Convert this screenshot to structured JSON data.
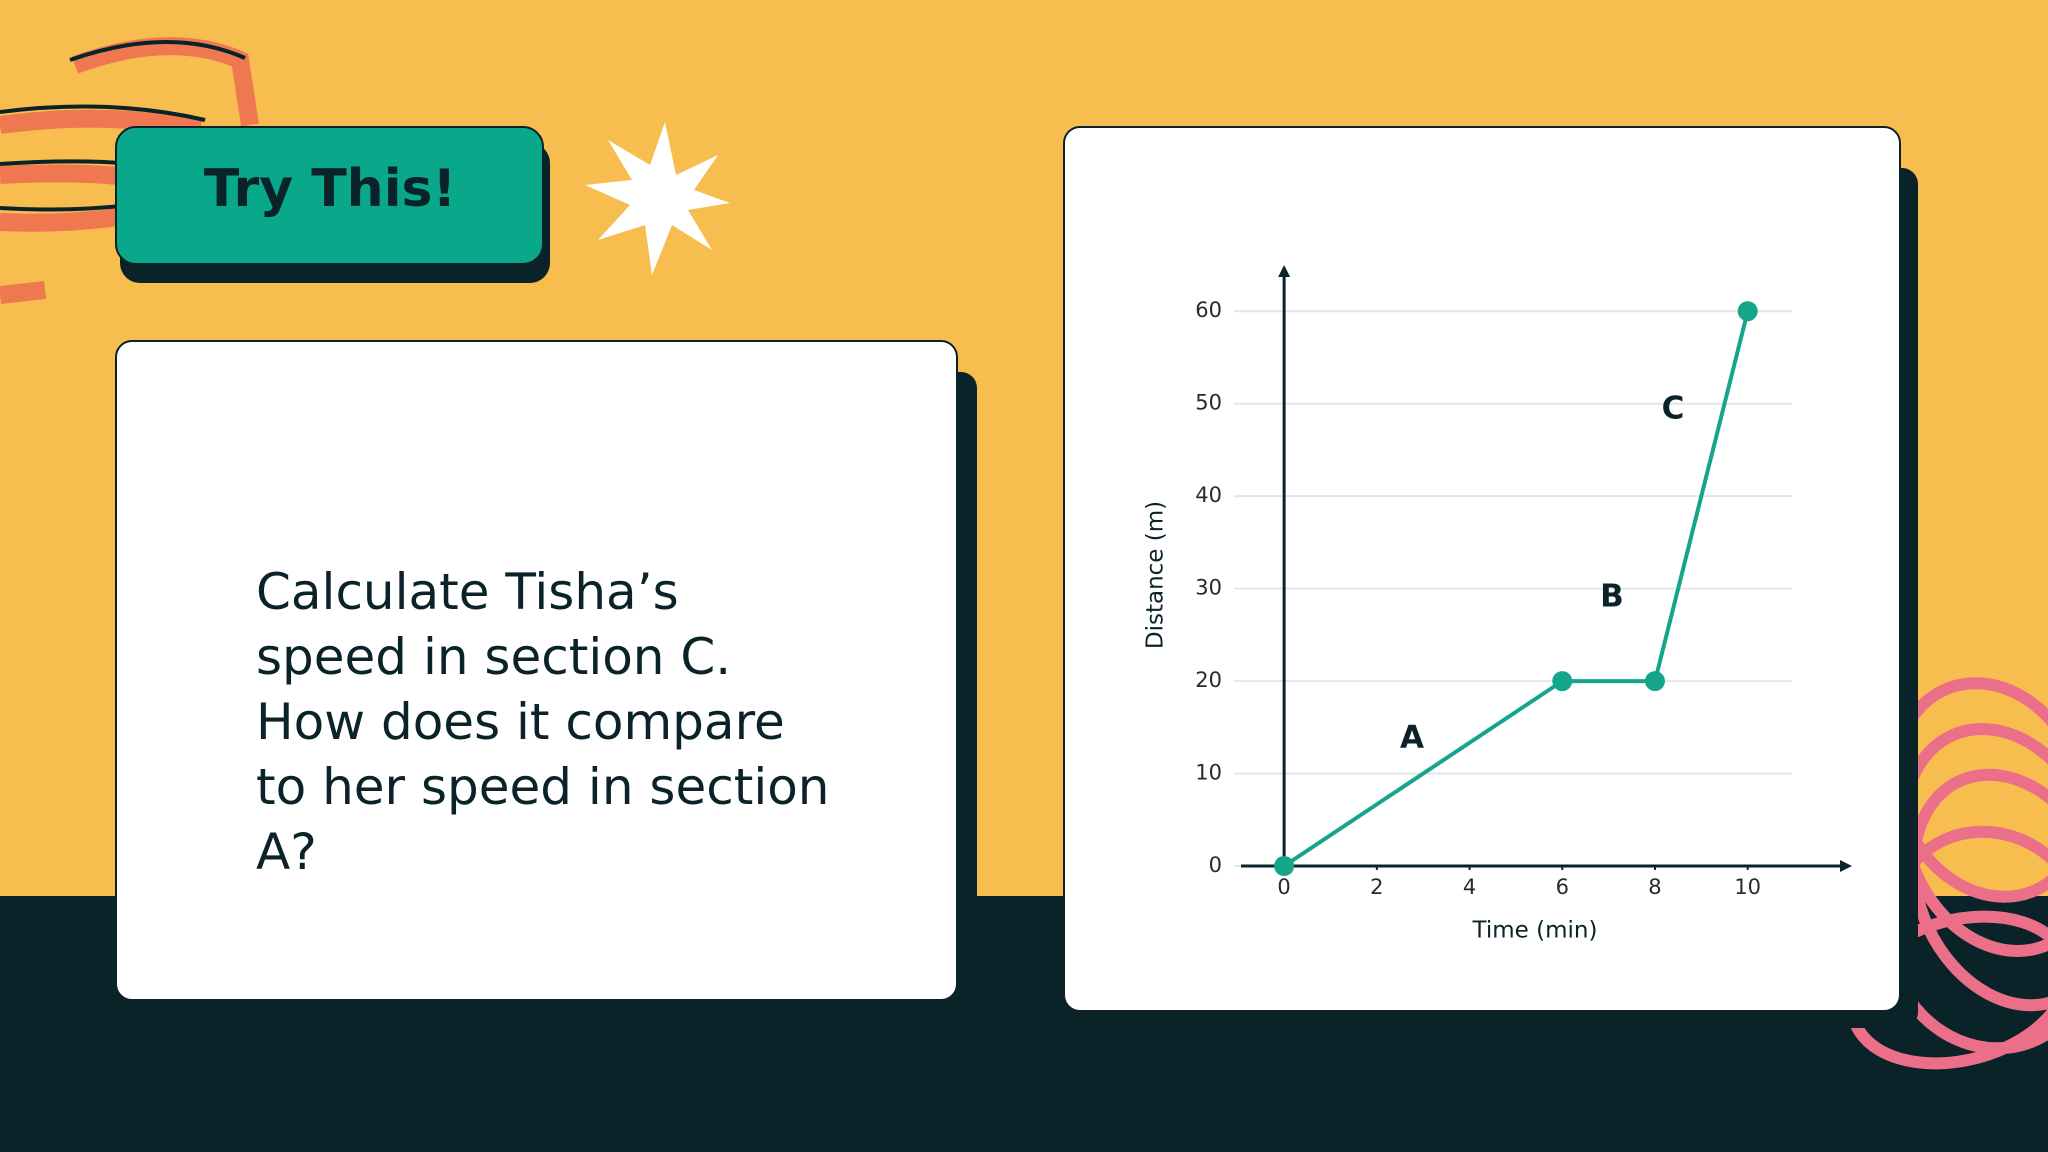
{
  "header": {
    "title": "Try This!"
  },
  "question": "Calculate Tisha’s speed in section C. How does it compare to her speed in section A?",
  "chart_data": {
    "type": "line",
    "x": [
      0,
      6,
      8,
      10
    ],
    "values": [
      0,
      20,
      20,
      60
    ],
    "color": "#14a58a",
    "xlim": [
      -0.93,
      12.25
    ],
    "ylim": [
      0,
      65
    ],
    "xticks": [
      0,
      2,
      4,
      6,
      8,
      10
    ],
    "yticks": [
      0,
      10,
      20,
      30,
      40,
      50,
      60
    ],
    "grid": true,
    "xlabel": "Time (min)",
    "ylabel": "Distance (m)",
    "annotations": [
      "A",
      "B",
      "C"
    ]
  }
}
